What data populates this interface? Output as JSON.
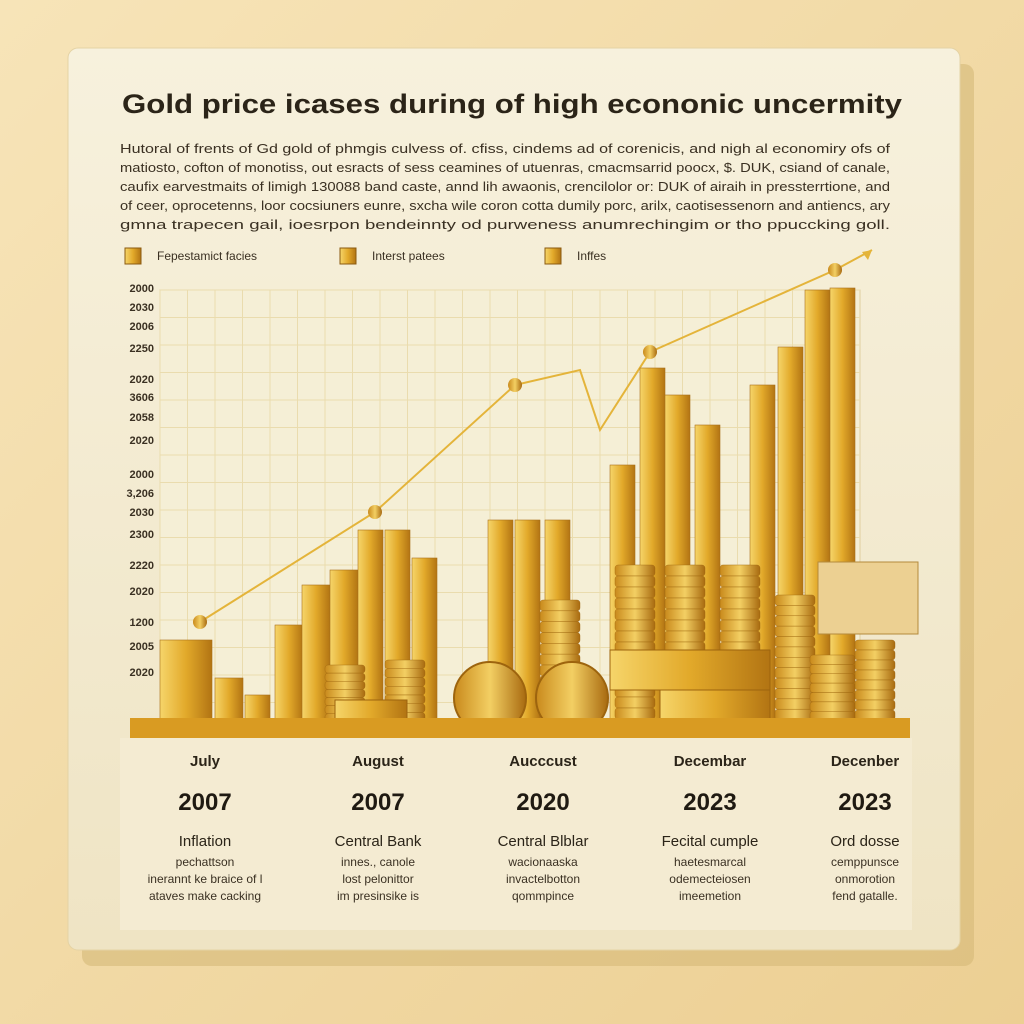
{
  "header": {
    "title": "Gold price icases  during of high econonic uncermity",
    "description": [
      "Hutoral of frents of Gd gold of phmgis culvess of. cfiss,  cindems ad of corenicis,  and nigh al economiry ofs of",
      "matiosto, cofton of monotiss, out esracts of sess ceamines of utuenras, cmacmsarrid poocx,  $. DUK, csiand of canale,",
      "caufix earvestmaits of limigh 130088 band caste,  annd lih awaonis, crencilolor or: DUK of airaih in pressterrtione,  and",
      "of ceer, oprocetenns,  loor cocsiuners eunre,  sxcha wile coron cotta dumily porc,  arilx,  caotisessenorn and antiencs,  ary",
      "gmna trapecen gail,  ioesrpon bendeinnty od purweness anumrechingim or tho ppuccking goll."
    ]
  },
  "legend": [
    "Fepestamict facies",
    "Interst patees",
    "Inffes"
  ],
  "y_labels": [
    "2000",
    "2030",
    "2006",
    "2250",
    "2020",
    "3606",
    "2058",
    "2020",
    "2000",
    "3,206",
    "2030",
    "2300",
    "2220",
    "2020",
    "1200",
    "2005",
    "2020"
  ],
  "timeline": [
    {
      "month": "July",
      "year": "2007",
      "heading": "Inflation",
      "lines": [
        "pechattson",
        "inerannt ke braice of l",
        "ataves make cacking"
      ]
    },
    {
      "month": "August",
      "year": "2007",
      "heading": "Central Bank",
      "lines": [
        "innes., canole",
        "lost pelonittor",
        "im presinsike is"
      ]
    },
    {
      "month": "Aucccust",
      "year": "2020",
      "heading": "Central Blblar",
      "lines": [
        "wacionaaska",
        "invactelbotton",
        "qommpince"
      ]
    },
    {
      "month": "Decembar",
      "year": "2023",
      "heading": "Fecital cumple",
      "lines": [
        "haetesmarcal",
        "odemecteiosen",
        "imeemetion"
      ]
    },
    {
      "month": "Decenber",
      "year": "2023",
      "heading": "Ord dosse",
      "lines": [
        "cemppunsce",
        "onmorotion",
        "fend gatalle."
      ]
    }
  ]
}
